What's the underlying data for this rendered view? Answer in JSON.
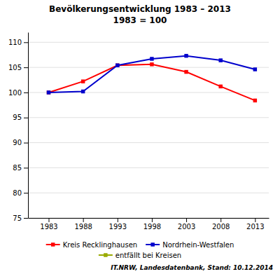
{
  "chart_data": {
    "type": "line",
    "title": "Bevölkerungsentwicklung 1983 – 2013",
    "subtitle": "1983 = 100",
    "x": [
      1983,
      1988,
      1993,
      1998,
      2003,
      2008,
      2013
    ],
    "series": [
      {
        "name": "Kreis Recklinghausen",
        "color": "#ff0000",
        "marker": "square",
        "values": [
          100.0,
          102.2,
          105.4,
          105.6,
          104.1,
          101.2,
          98.4
        ]
      },
      {
        "name": "Nordrhein-Westfalen",
        "color": "#0000cc",
        "marker": "square",
        "values": [
          100.0,
          100.2,
          105.4,
          106.7,
          107.3,
          106.4,
          104.6
        ]
      },
      {
        "name": "entfällt bei Kreisen",
        "color": "#99aa00",
        "marker": "square",
        "values": [
          null,
          null,
          null,
          null,
          null,
          null,
          null
        ]
      }
    ],
    "xlim": [
      1980,
      2015
    ],
    "xticks": [
      1983,
      1988,
      1993,
      1998,
      2003,
      2008,
      2013
    ],
    "ylim": [
      75,
      112
    ],
    "yticks": [
      75,
      80,
      85,
      90,
      95,
      100,
      105,
      110
    ],
    "grid": true,
    "legend": "bottom",
    "annotations": [
      "IT.NRW, Landesdatenbank, Stand: 10.12.2014"
    ]
  }
}
